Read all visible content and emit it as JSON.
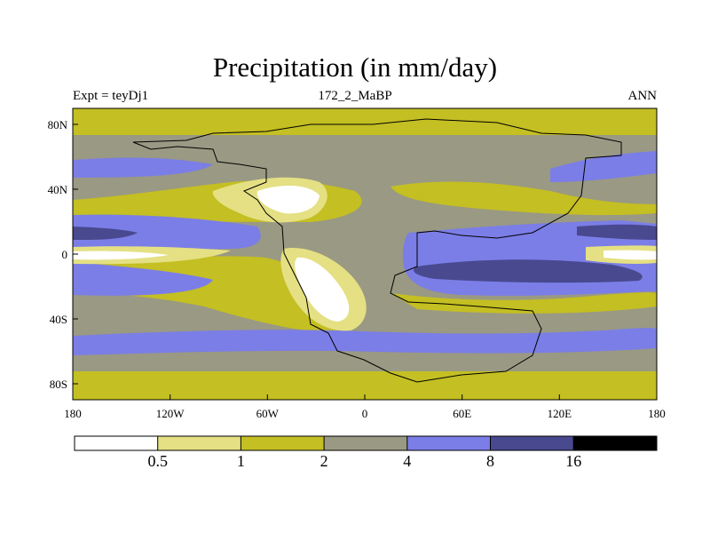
{
  "title": "Precipitation (in mm/day)",
  "left_label": "Expt = teyDj1",
  "center_label": "172_2_MaBP",
  "right_label": "ANN",
  "x_ticks": [
    "180",
    "120W",
    "60W",
    "0",
    "60E",
    "120E",
    "180"
  ],
  "y_ticks": [
    "80N",
    "40N",
    "0",
    "40S",
    "80S"
  ],
  "colorbar": {
    "colors": [
      "#ffffff",
      "#e4e083",
      "#c4bf22",
      "#9a9983",
      "#7b7ee6",
      "#48498f",
      "#000000"
    ],
    "labels": [
      "0.5",
      "1",
      "2",
      "4",
      "8",
      "16"
    ]
  }
}
